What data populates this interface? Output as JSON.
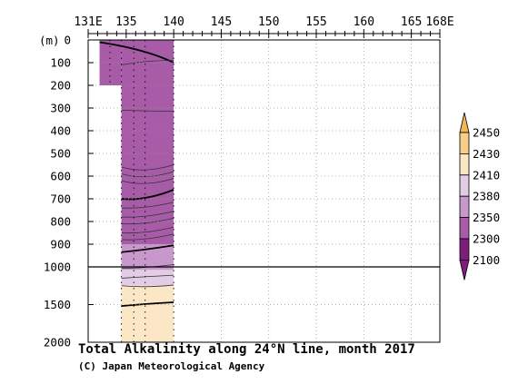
{
  "chart_data": {
    "type": "heatmap",
    "title": "Total Alkalinity along 24°N line, month 2017",
    "credit": "(C) Japan Meteorological Agency",
    "x_ticks": [
      "131E",
      "135",
      "140",
      "145",
      "150",
      "155",
      "160",
      "165",
      "168E"
    ],
    "x_tick_values": [
      131,
      135,
      140,
      145,
      150,
      155,
      160,
      165,
      168
    ],
    "x_range": [
      131,
      168
    ],
    "ylabel": "(m)",
    "y_ticks_upper": [
      "0",
      "100",
      "200",
      "300",
      "400",
      "500",
      "600",
      "700",
      "800",
      "900",
      "1000"
    ],
    "y_ticks_lower": [
      "1500",
      "2000"
    ],
    "y_range": [
      0,
      2000
    ],
    "y_break": 1000,
    "y_scale_note": "0–1000 m linear upper panel, 1000–2000 m compressed lower panel",
    "grid": true,
    "legend": {
      "placement": "right",
      "levels": [
        "2450",
        "2430",
        "2410",
        "2380",
        "2350",
        "2300",
        "2100"
      ],
      "colors": [
        "#f0b855",
        "#f7cd88",
        "#fbe6c6",
        "#e3cce6",
        "#c898cc",
        "#a85ca8",
        "#7e1e7c"
      ]
    },
    "sections": [
      {
        "lon_range": [
          132.2,
          134.5
        ],
        "depth_range": [
          0,
          200
        ],
        "class": "2100-2300"
      },
      {
        "lon_range": [
          134.5,
          140.0
        ],
        "depth_range": [
          0,
          900
        ],
        "class": "2100-2300"
      },
      {
        "lon_range": [
          134.5,
          140.0
        ],
        "depth_range": [
          900,
          1040
        ],
        "class": "2300-2350"
      },
      {
        "lon_range": [
          134.5,
          140.0
        ],
        "depth_range": [
          1040,
          1250
        ],
        "class": "2350-2380"
      },
      {
        "lon_range": [
          134.5,
          140.0
        ],
        "depth_range": [
          1250,
          2000
        ],
        "class": "2380-2410"
      }
    ],
    "station_lons": [
      133.3,
      134.5,
      135.8,
      137.0,
      140.0
    ]
  }
}
